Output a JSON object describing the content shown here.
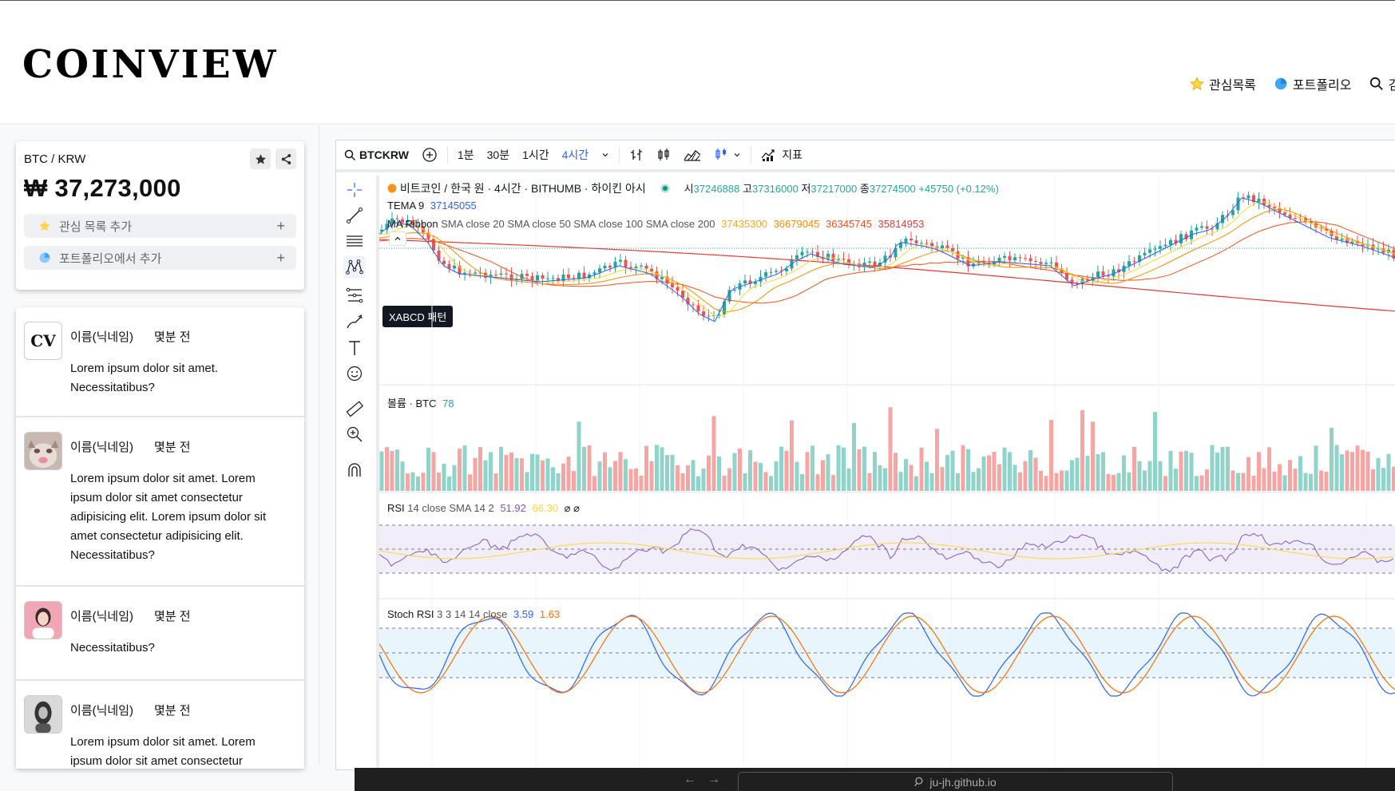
{
  "header": {
    "logo": "COINVIEW",
    "nav": [
      {
        "label": "관심목록",
        "icon": "star-icon"
      },
      {
        "label": "포트폴리오",
        "icon": "pie-chart-icon"
      },
      {
        "label": "검",
        "icon": "search-icon"
      }
    ]
  },
  "price_card": {
    "pair": "BTC / KRW",
    "price": "₩ 37,273,000",
    "watchlist_label": "관심 목록 추가",
    "portfolio_label": "포트폴리오에서 추가",
    "plus": "+"
  },
  "feed": [
    {
      "name": "이름(닉네임)",
      "time": "몇분 전",
      "avatar": "cv-logo",
      "avatar_text": "CV",
      "text": "Lorem ipsum dolor sit amet. Necessitatibus?"
    },
    {
      "name": "이름(닉네임)",
      "time": "몇분 전",
      "avatar": "cat-photo",
      "text": "Lorem ipsum dolor sit amet. Lorem ipsum dolor sit amet consectetur adipisicing elit. Lorem ipsum dolor sit amet consectetur adipisicing elit. Necessitatibus?"
    },
    {
      "name": "이름(닉네임)",
      "time": "몇분 전",
      "avatar": "person-photo",
      "text": "Necessitatibus?"
    },
    {
      "name": "이름(닉네임)",
      "time": "몇분 전",
      "avatar": "person-photo-bw",
      "text": "Lorem ipsum dolor sit amet. Lorem ipsum dolor sit amet consectetur"
    }
  ],
  "toolbar": {
    "symbol": "BTCKRW",
    "intervals": [
      "1분",
      "30분",
      "1시간",
      "4시간"
    ],
    "active_interval": "4시간",
    "indicators_label": "지표"
  },
  "tooltip": "XABCD 패턴",
  "legends": {
    "title": "비트코인 / 한국 원 · 4시간 · BITHUMB · 하이킨 아시",
    "ohlc": {
      "o_label": "시",
      "o": "37246888",
      "h_label": "고",
      "h": "37316000",
      "l_label": "저",
      "l": "37217000",
      "c_label": "종",
      "c": "37274500",
      "change": "+45750 (+0.12%)"
    },
    "tema": {
      "label": "TEMA",
      "period": "9",
      "value": "37145055"
    },
    "ma_ribbon": {
      "label": "MA Ribbon",
      "params": "SMA close 20 SMA close 50 SMA close 100 SMA close 200",
      "values": [
        "37435300",
        "36679045",
        "36345745",
        "35814953"
      ]
    },
    "volume": {
      "label": "볼륨 · BTC",
      "value": "78"
    },
    "rsi": {
      "label": "RSI",
      "params": "14 close SMA 14 2",
      "value": "51.92",
      "value2": "66.30",
      "extra": "⌀ ⌀"
    },
    "stoch": {
      "label": "Stoch RSI",
      "params": "3 3 14 14 close",
      "k": "3.59",
      "d": "1.63"
    }
  },
  "colors": {
    "up": "#26a69a",
    "down": "#ef5350",
    "accent": "#2962ff",
    "orange": "#f7931a",
    "rsi_line": "#7e57c2",
    "stoch_k": "#2962ff",
    "stoch_d": "#ff6d00"
  },
  "browser": {
    "url": "ju-jh.github.io"
  }
}
